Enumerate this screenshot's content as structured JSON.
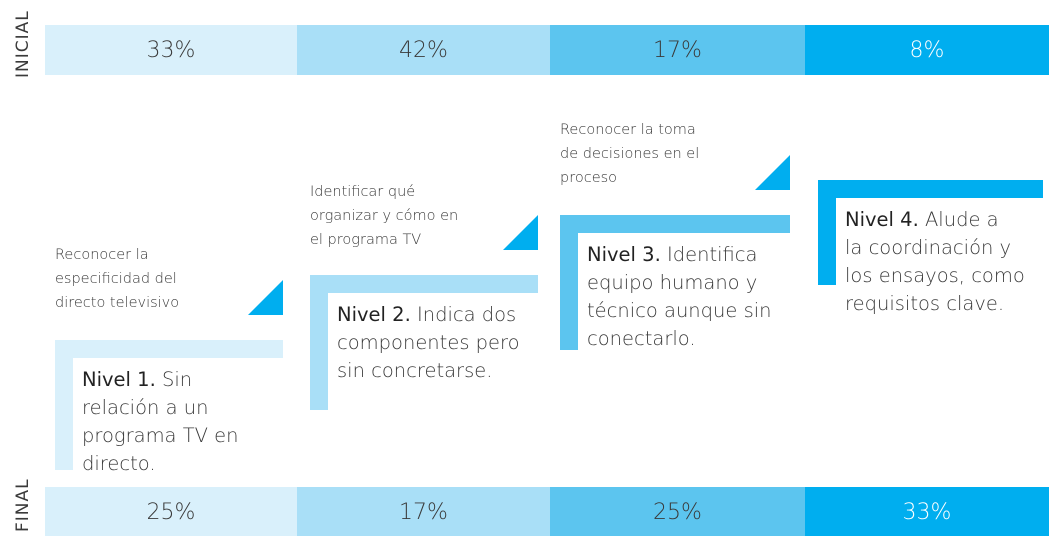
{
  "rows": {
    "initial": {
      "label": "INICIAL",
      "cells": [
        "33%",
        "42%",
        "17%",
        "8%"
      ]
    },
    "final": {
      "label": "FINAL",
      "cells": [
        "25%",
        "17%",
        "25%",
        "33%"
      ]
    }
  },
  "levels": [
    {
      "description": [
        "Reconocer la",
        "especificidad del",
        "directo televisivo"
      ],
      "title": "Nivel 1.",
      "body": [
        "Sin",
        "relación a un",
        "programa TV en",
        "directo."
      ]
    },
    {
      "description": [
        "Identificar qué",
        "organizar y cómo en",
        "el programa TV"
      ],
      "title": "Nivel 2.",
      "body": [
        "Indica dos",
        "componentes pero",
        "sin concretarse."
      ]
    },
    {
      "description": [
        "Reconocer la toma",
        "de decisiones en el",
        "proceso"
      ],
      "title": "Nivel 3.",
      "body": [
        "Identifica",
        "equipo humano y",
        "técnico aunque sin",
        "conectarlo."
      ]
    },
    {
      "description": [],
      "title": "Nivel 4.",
      "body": [
        "Alude a",
        "la coordinación y",
        "los ensayos, como",
        "requisitos clave."
      ]
    }
  ]
}
